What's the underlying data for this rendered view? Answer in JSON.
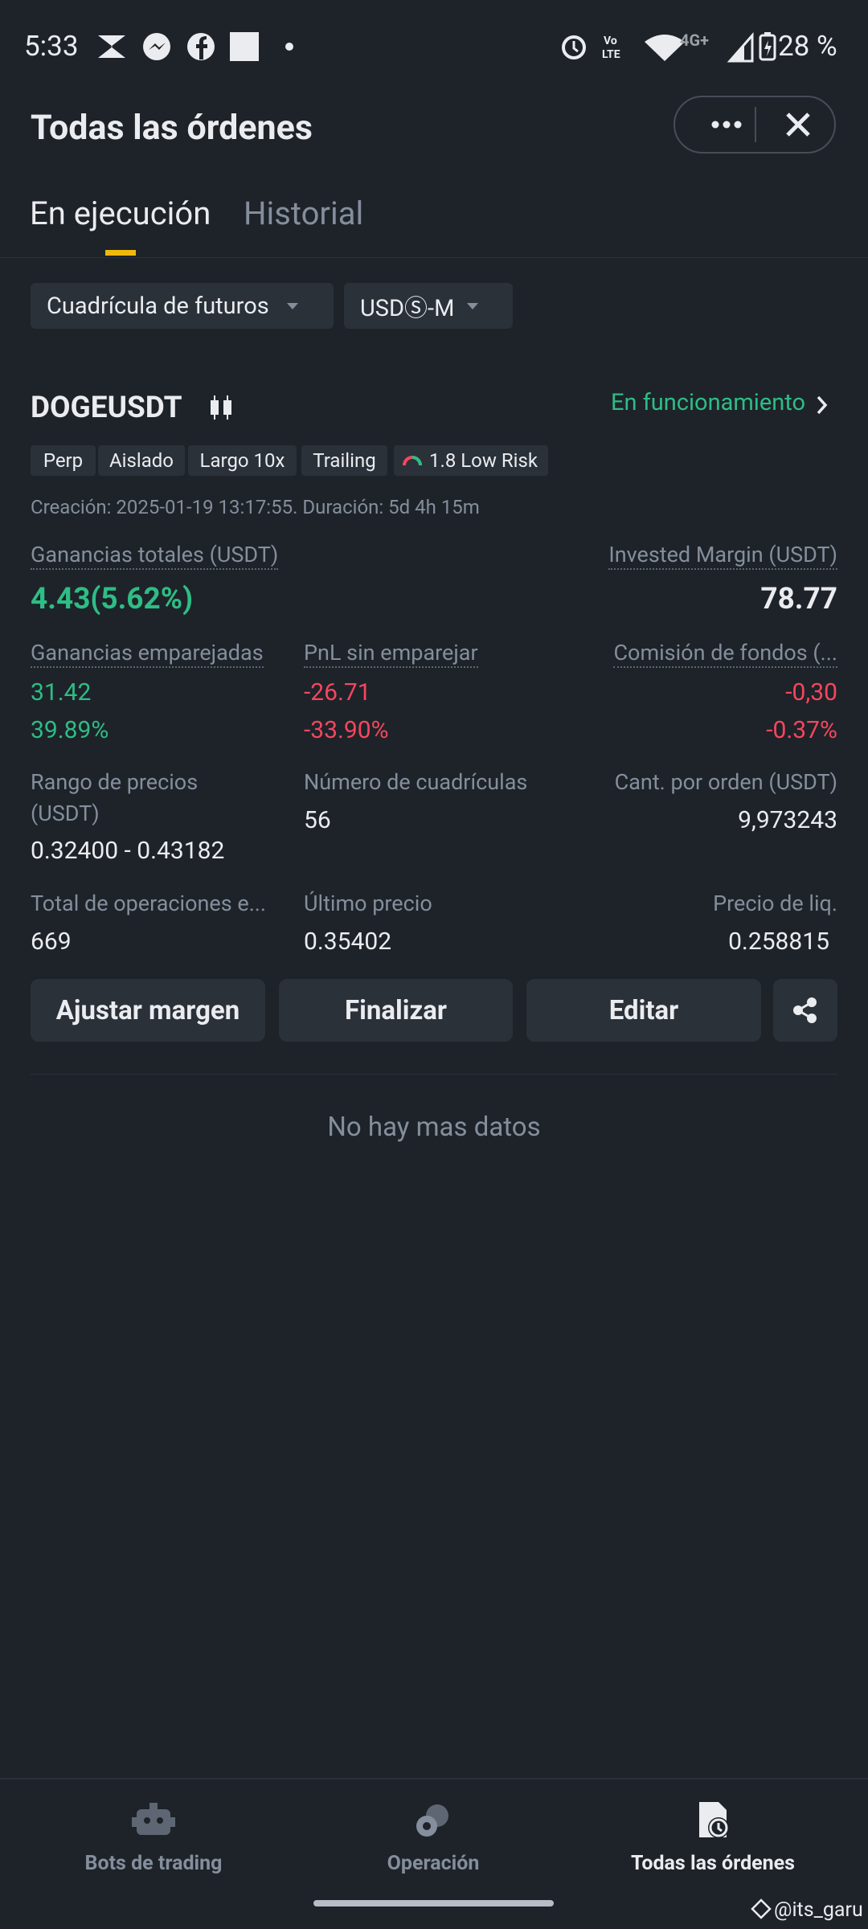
{
  "status_bar": {
    "time": "5:33",
    "network": "4G+",
    "battery": "28 %"
  },
  "header": {
    "title": "Todas las órdenes"
  },
  "tabs": [
    "En ejecución",
    "Historial"
  ],
  "filters": [
    "Cuadrícula de futuros",
    "USDⓈ-M"
  ],
  "order": {
    "symbol": "DOGEUSDT",
    "status": "En funcionamiento",
    "tags": [
      "Perp",
      "Aislado",
      "Largo 10x",
      "Trailing",
      "1.8 Low Risk"
    ],
    "created": "Creación: 2025-01-19 13:17:55. Duración: 5d 4h 15m",
    "total_pnl_label": "Ganancias totales (USDT)",
    "total_pnl": "4.43(5.62%)",
    "invested_margin_label": "Invested Margin (USDT)",
    "invested_margin": "78.77",
    "matched_label": "Ganancias emparejadas",
    "matched": [
      "31.42",
      "39.89%"
    ],
    "unmatched_label": "PnL sin emparejar",
    "unmatched": [
      "-26.71",
      "-33.90%"
    ],
    "funding_label": "Comisión de fondos (...",
    "funding": [
      "-0,30",
      "-0.37%"
    ],
    "price_range_label": "Rango de precios (USDT)",
    "price_range": "0.32400 - 0.43182",
    "grid_count_label": "Número de cuadrículas",
    "grid_count": "56",
    "qty_label": "Cant. por orden (USDT)",
    "qty": "9,973243",
    "total_trades_label": "Total de operaciones e...",
    "total_trades": "669",
    "last_price_label": "Último precio",
    "last_price": "0.35402",
    "liq_label": "Precio de liq.",
    "liq": "0.258815"
  },
  "actions": [
    "Ajustar margen",
    "Finalizar",
    "Editar"
  ],
  "empty": "No hay mas datos",
  "nav": [
    "Bots de trading",
    "Operación",
    "Todas las órdenes"
  ],
  "watermark": "@its_garu"
}
